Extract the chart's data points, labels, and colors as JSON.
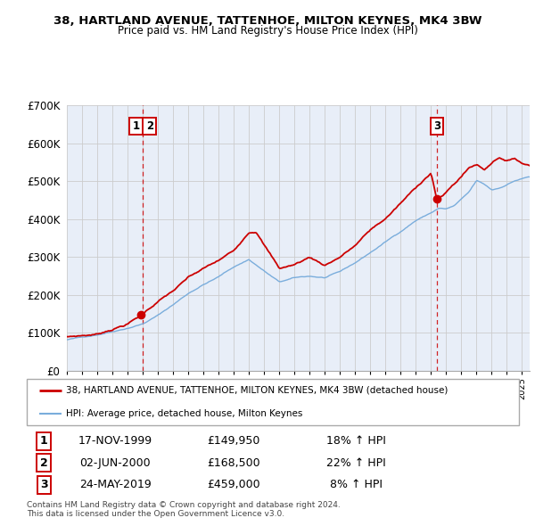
{
  "title_line1": "38, HARTLAND AVENUE, TATTENHOE, MILTON KEYNES, MK4 3BW",
  "title_line2": "Price paid vs. HM Land Registry's House Price Index (HPI)",
  "legend_line1": "38, HARTLAND AVENUE, TATTENHOE, MILTON KEYNES, MK4 3BW (detached house)",
  "legend_line2": "HPI: Average price, detached house, Milton Keynes",
  "transactions": [
    {
      "num": 1,
      "date": "17-NOV-1999",
      "date_x": 1999.88,
      "price": 149950,
      "pct": "18%",
      "dir": "↑"
    },
    {
      "num": 2,
      "date": "02-JUN-2000",
      "date_x": 2000.42,
      "price": 168500,
      "pct": "22%",
      "dir": "↑"
    },
    {
      "num": 3,
      "date": "24-MAY-2019",
      "date_x": 2019.39,
      "price": 459000,
      "pct": "8%",
      "dir": "↑"
    }
  ],
  "vline1_x": 2000.0,
  "vline2_x": 2019.39,
  "ylabel_max": 700000,
  "yticks": [
    0,
    100000,
    200000,
    300000,
    400000,
    500000,
    600000,
    700000
  ],
  "ytick_labels": [
    "£0",
    "£100K",
    "£200K",
    "£300K",
    "£400K",
    "£500K",
    "£600K",
    "£700K"
  ],
  "footnote1": "Contains HM Land Registry data © Crown copyright and database right 2024.",
  "footnote2": "This data is licensed under the Open Government Licence v3.0.",
  "red_color": "#cc0000",
  "blue_color": "#7aaddc",
  "bg_color": "#e8eef8",
  "plot_bg": "#ffffff",
  "grid_color": "#cccccc",
  "xmin": 1995.0,
  "xmax": 2025.5
}
